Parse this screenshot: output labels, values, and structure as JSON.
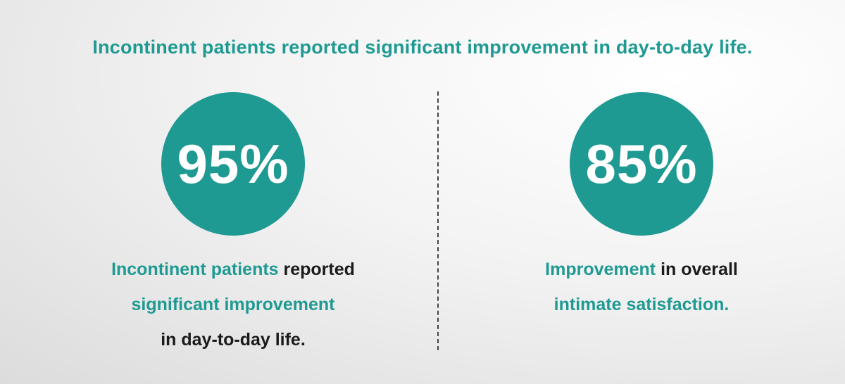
{
  "headline": "Incontinent patients reported significant improvement in day-to-day life.",
  "colors": {
    "accent": "#1f9a92",
    "text": "#1b1b1b",
    "circle_text": "#ffffff"
  },
  "stats": [
    {
      "value": "95%",
      "line1_accent": "Incontinent patients",
      "line1_rest": " reported",
      "line2": "significant improvement",
      "line3": "in day-to-day life."
    },
    {
      "value": "85%",
      "line1_accent": "Improvement",
      "line1_rest": " in overall",
      "line2": "intimate satisfaction."
    }
  ]
}
